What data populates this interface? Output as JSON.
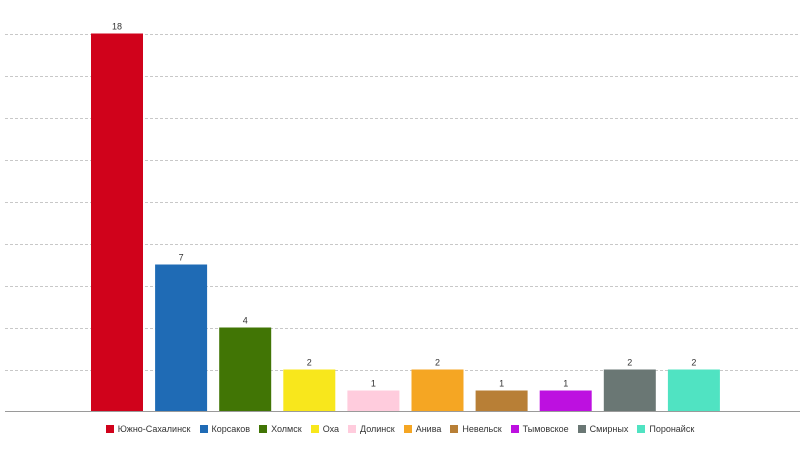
{
  "chart_data": {
    "type": "bar",
    "categories": [
      "Южно-Сахалинск",
      "Корсаков",
      "Холмск",
      "Оха",
      "Долинск",
      "Анива",
      "Невельск",
      "Тымовское",
      "Смирных",
      "Поронайск"
    ],
    "values": [
      18,
      7,
      4,
      2,
      1,
      2,
      1,
      1,
      2,
      2
    ],
    "colors": [
      "#d0021b",
      "#1f6bb5",
      "#417505",
      "#f8e71c",
      "#ffccdd",
      "#f5a623",
      "#b87f36",
      "#bd10e0",
      "#6a7774",
      "#50e3c2"
    ],
    "ylim": [
      0,
      18
    ],
    "grid": true,
    "legend_position": "bottom"
  }
}
